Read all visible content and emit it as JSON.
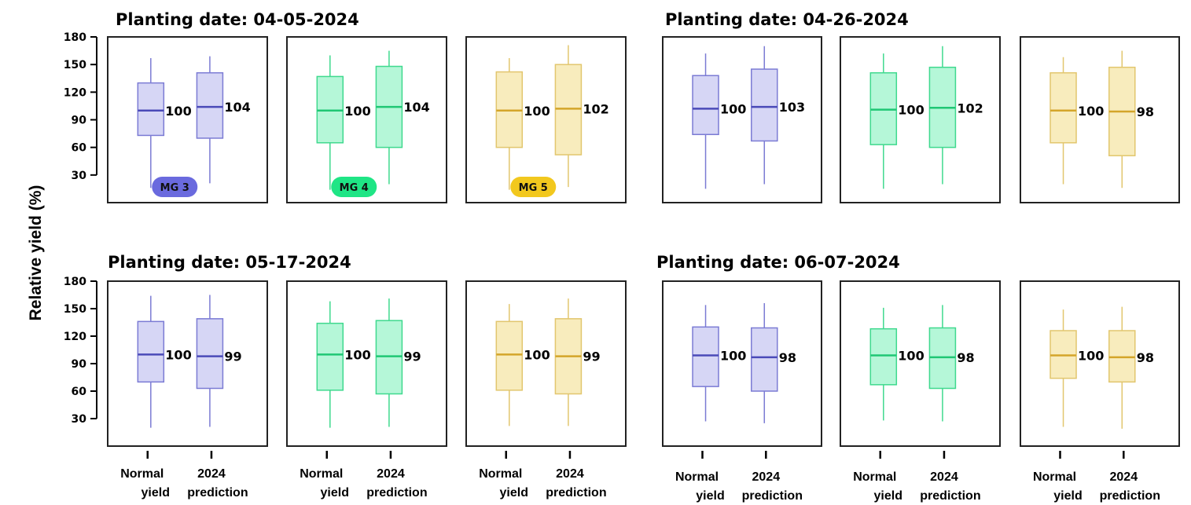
{
  "y_axis_label": "Relative yield (%)",
  "chart_data": {
    "type": "box",
    "ylabel": "Relative yield (%)",
    "ylim": [
      0,
      180
    ],
    "yticks": [
      30,
      60,
      90,
      120,
      150,
      180
    ],
    "categories": [
      "Normal\nyield",
      "2024\nprediction"
    ],
    "maturity_groups": [
      {
        "label": "MG 3",
        "fill": "#d6d6f5",
        "stroke": "#7b7bd4",
        "median_color": "#4a4ab8",
        "badge": "#6a6ade"
      },
      {
        "label": "MG 4",
        "fill": "#b5f7d8",
        "stroke": "#3fd98e",
        "median_color": "#1fc774",
        "badge": "#1fe585"
      },
      {
        "label": "MG 5",
        "fill": "#f8ecbd",
        "stroke": "#e2c66e",
        "median_color": "#d4a52a",
        "badge": "#f2c81e"
      }
    ],
    "panels": [
      {
        "title": "Planting date: 04-05-2024",
        "groups": [
          {
            "mg": "MG 3",
            "boxes": [
              {
                "label": "100",
                "min": 16,
                "q1": 73,
                "median": 100,
                "q3": 130,
                "max": 157
              },
              {
                "label": "104",
                "min": 21,
                "q1": 70,
                "median": 104,
                "q3": 141,
                "max": 159
              }
            ]
          },
          {
            "mg": "MG 4",
            "boxes": [
              {
                "label": "100",
                "min": 14,
                "q1": 65,
                "median": 100,
                "q3": 137,
                "max": 160
              },
              {
                "label": "104",
                "min": 20,
                "q1": 60,
                "median": 104,
                "q3": 148,
                "max": 165
              }
            ]
          },
          {
            "mg": "MG 5",
            "boxes": [
              {
                "label": "100",
                "min": 14,
                "q1": 60,
                "median": 100,
                "q3": 142,
                "max": 157
              },
              {
                "label": "102",
                "min": 17,
                "q1": 52,
                "median": 102,
                "q3": 150,
                "max": 171
              }
            ]
          }
        ]
      },
      {
        "title": "Planting date: 04-26-2024",
        "groups": [
          {
            "mg": "MG 3",
            "boxes": [
              {
                "label": "100",
                "min": 15,
                "q1": 74,
                "median": 102,
                "q3": 138,
                "max": 162
              },
              {
                "label": "103",
                "min": 20,
                "q1": 67,
                "median": 104,
                "q3": 145,
                "max": 170
              }
            ]
          },
          {
            "mg": "MG 4",
            "boxes": [
              {
                "label": "100",
                "min": 15,
                "q1": 63,
                "median": 101,
                "q3": 141,
                "max": 162
              },
              {
                "label": "102",
                "min": 20,
                "q1": 60,
                "median": 103,
                "q3": 147,
                "max": 170
              }
            ]
          },
          {
            "mg": "MG 5",
            "boxes": [
              {
                "label": "100",
                "min": 20,
                "q1": 65,
                "median": 100,
                "q3": 141,
                "max": 158
              },
              {
                "label": "98",
                "min": 16,
                "q1": 51,
                "median": 99,
                "q3": 147,
                "max": 165
              }
            ]
          }
        ]
      },
      {
        "title": "Planting date: 05-17-2024",
        "groups": [
          {
            "mg": "MG 3",
            "boxes": [
              {
                "label": "100",
                "min": 20,
                "q1": 70,
                "median": 100,
                "q3": 136,
                "max": 164
              },
              {
                "label": "99",
                "min": 21,
                "q1": 63,
                "median": 98,
                "q3": 139,
                "max": 165
              }
            ]
          },
          {
            "mg": "MG 4",
            "boxes": [
              {
                "label": "100",
                "min": 20,
                "q1": 61,
                "median": 100,
                "q3": 134,
                "max": 158
              },
              {
                "label": "99",
                "min": 21,
                "q1": 57,
                "median": 98,
                "q3": 137,
                "max": 161
              }
            ]
          },
          {
            "mg": "MG 5",
            "boxes": [
              {
                "label": "100",
                "min": 22,
                "q1": 61,
                "median": 100,
                "q3": 136,
                "max": 155
              },
              {
                "label": "99",
                "min": 22,
                "q1": 57,
                "median": 98,
                "q3": 139,
                "max": 161
              }
            ]
          }
        ]
      },
      {
        "title": "Planting date: 06-07-2024",
        "groups": [
          {
            "mg": "MG 3",
            "boxes": [
              {
                "label": "100",
                "min": 27,
                "q1": 65,
                "median": 99,
                "q3": 130,
                "max": 154
              },
              {
                "label": "98",
                "min": 25,
                "q1": 60,
                "median": 97,
                "q3": 129,
                "max": 156
              }
            ]
          },
          {
            "mg": "MG 4",
            "boxes": [
              {
                "label": "100",
                "min": 28,
                "q1": 67,
                "median": 99,
                "q3": 128,
                "max": 151
              },
              {
                "label": "98",
                "min": 27,
                "q1": 63,
                "median": 97,
                "q3": 129,
                "max": 154
              }
            ]
          },
          {
            "mg": "MG 5",
            "boxes": [
              {
                "label": "100",
                "min": 21,
                "q1": 74,
                "median": 99,
                "q3": 126,
                "max": 149
              },
              {
                "label": "98",
                "min": 19,
                "q1": 70,
                "median": 97,
                "q3": 126,
                "max": 152
              }
            ]
          }
        ]
      }
    ]
  }
}
